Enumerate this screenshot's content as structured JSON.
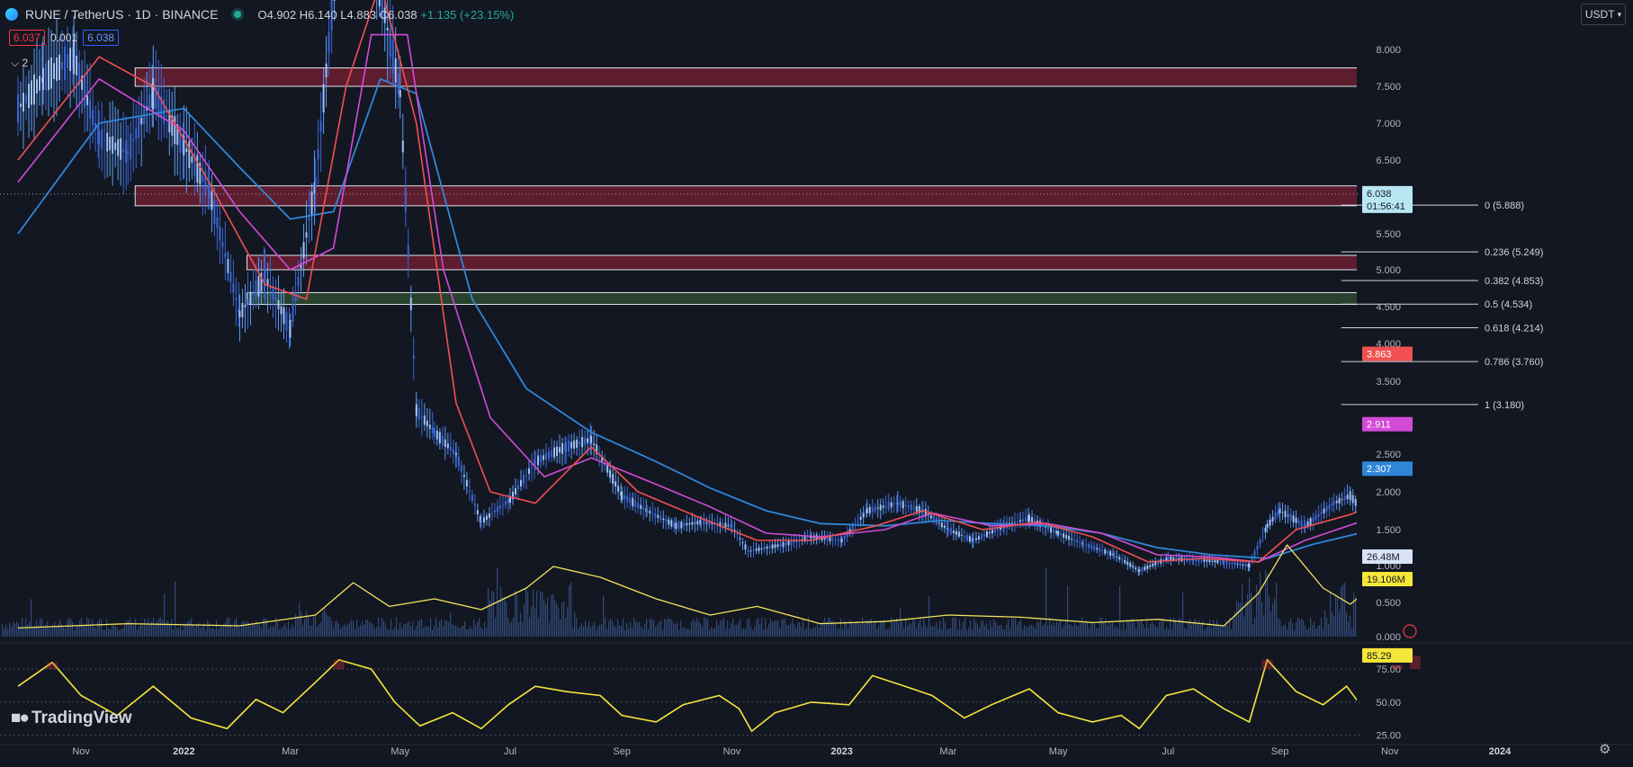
{
  "header": {
    "symbol": "RUNE / TetherUS · 1D · BINANCE",
    "open": "O4.902",
    "high": "H6.140",
    "low": "L4.883",
    "close": "C6.038",
    "change": "+1.135 (+23.15%)",
    "sell_price": "6.037",
    "spread": "0.001",
    "buy_price": "6.038",
    "indicator_toggle": "2",
    "currency": "USDT"
  },
  "watermark": "TradingView",
  "colors": {
    "background": "#131722",
    "candle_up": "#5b9cf6",
    "candle_down": "#3a66d6",
    "ema_red": "#f05050",
    "ema_magenta": "#d24bd6",
    "ema_blue": "#2f86d8",
    "volume_ma": "#f2e45b",
    "rsi": "#f5e63a",
    "zone_red": "#6b1f30",
    "zone_green": "#2d4a2f"
  },
  "chart_data": {
    "type": "line",
    "series_description_source": "price candles reconstructed from chart",
    "x_tick_labels": [
      "Nov",
      "2022",
      "Mar",
      "May",
      "Jul",
      "Sep",
      "Nov",
      "2023",
      "Mar",
      "May",
      "Jul",
      "Sep",
      "Nov",
      "2024"
    ],
    "y_axis": {
      "ticks": [
        "8.000",
        "7.500",
        "7.000",
        "6.500",
        "5.500",
        "5.000",
        "4.500",
        "4.000",
        "3.500",
        "2.500",
        "2.000",
        "1.500",
        "1.000",
        "0.500",
        "0.000"
      ],
      "log_scale": true
    },
    "price_labels": {
      "last_price": "6.038",
      "countdown": "01:56:41",
      "ema_red": "3.863",
      "ema_magenta": "2.911",
      "ema_blue": "2.307",
      "volume": "26.48M",
      "volume_ma": "19.106M"
    },
    "fibonacci": [
      {
        "label": "0 (5.888)",
        "value": 5.888
      },
      {
        "label": "0.236 (5.249)",
        "value": 5.249
      },
      {
        "label": "0.382 (4.853)",
        "value": 4.853
      },
      {
        "label": "0.5 (4.534)",
        "value": 4.534
      },
      {
        "label": "0.618 (4.214)",
        "value": 4.214
      },
      {
        "label": "0.786 (3.760)",
        "value": 3.76
      },
      {
        "label": "1 (3.180)",
        "value": 3.18
      }
    ],
    "zones": [
      {
        "type": "resistance",
        "from": 7.5,
        "to": 7.75,
        "start": "2021-12",
        "end": "2023-12"
      },
      {
        "type": "resistance",
        "from": 5.88,
        "to": 6.15,
        "start": "2021-12",
        "end": "2023-12"
      },
      {
        "type": "resistance",
        "from": 5.0,
        "to": 5.2,
        "start": "2022-02",
        "end": "2023-12"
      },
      {
        "type": "support",
        "from": 4.53,
        "to": 4.69,
        "start": "2022-02",
        "end": "2023-12"
      }
    ],
    "price_path": [
      [
        "2021-10-01",
        7.2
      ],
      [
        "2021-10-15",
        7.6
      ],
      [
        "2021-11-01",
        7.9
      ],
      [
        "2021-11-15",
        6.8
      ],
      [
        "2021-12-01",
        6.6
      ],
      [
        "2021-12-15",
        7.4
      ],
      [
        "2022-01-01",
        6.7
      ],
      [
        "2022-01-15",
        6.1
      ],
      [
        "2022-02-01",
        4.4
      ],
      [
        "2022-02-15",
        4.9
      ],
      [
        "2022-03-01",
        4.2
      ],
      [
        "2022-03-15",
        6.2
      ],
      [
        "2022-04-01",
        10.5
      ],
      [
        "2022-04-15",
        9.4
      ],
      [
        "2022-05-01",
        7.4
      ],
      [
        "2022-05-10",
        3.1
      ],
      [
        "2022-05-20",
        2.8
      ],
      [
        "2022-06-01",
        2.5
      ],
      [
        "2022-06-15",
        1.6
      ],
      [
        "2022-07-01",
        1.9
      ],
      [
        "2022-07-15",
        2.4
      ],
      [
        "2022-08-01",
        2.6
      ],
      [
        "2022-08-15",
        2.7
      ],
      [
        "2022-09-01",
        1.95
      ],
      [
        "2022-09-15",
        1.75
      ],
      [
        "2022-10-01",
        1.55
      ],
      [
        "2022-10-15",
        1.6
      ],
      [
        "2022-11-01",
        1.55
      ],
      [
        "2022-11-10",
        1.2
      ],
      [
        "2022-12-01",
        1.3
      ],
      [
        "2022-12-15",
        1.4
      ],
      [
        "2023-01-01",
        1.35
      ],
      [
        "2023-01-15",
        1.75
      ],
      [
        "2023-02-01",
        1.85
      ],
      [
        "2023-02-15",
        1.75
      ],
      [
        "2023-03-01",
        1.5
      ],
      [
        "2023-03-15",
        1.35
      ],
      [
        "2023-04-01",
        1.55
      ],
      [
        "2023-04-15",
        1.65
      ],
      [
        "2023-05-01",
        1.45
      ],
      [
        "2023-05-15",
        1.3
      ],
      [
        "2023-06-01",
        1.15
      ],
      [
        "2023-06-15",
        0.93
      ],
      [
        "2023-07-01",
        1.1
      ],
      [
        "2023-07-15",
        1.08
      ],
      [
        "2023-08-01",
        1.05
      ],
      [
        "2023-08-15",
        1.0
      ],
      [
        "2023-08-25",
        1.55
      ],
      [
        "2023-09-01",
        1.75
      ],
      [
        "2023-09-15",
        1.55
      ],
      [
        "2023-10-01",
        1.85
      ],
      [
        "2023-10-10",
        1.95
      ],
      [
        "2023-10-20",
        1.65
      ],
      [
        "2023-10-25",
        2.1
      ],
      [
        "2023-11-01",
        2.9
      ],
      [
        "2023-11-08",
        3.8
      ],
      [
        "2023-11-12",
        4.9
      ],
      [
        "2023-11-15",
        6.038
      ]
    ],
    "ema_red": [
      [
        "2021-10-01",
        6.5
      ],
      [
        "2021-11-15",
        7.9
      ],
      [
        "2021-12-15",
        7.5
      ],
      [
        "2022-01-15",
        6.2
      ],
      [
        "2022-02-15",
        4.8
      ],
      [
        "2022-03-10",
        4.6
      ],
      [
        "2022-04-01",
        7.5
      ],
      [
        "2022-04-20",
        8.9
      ],
      [
        "2022-05-10",
        7.0
      ],
      [
        "2022-06-01",
        3.2
      ],
      [
        "2022-06-20",
        2.0
      ],
      [
        "2022-07-15",
        1.85
      ],
      [
        "2022-08-15",
        2.6
      ],
      [
        "2022-09-10",
        2.0
      ],
      [
        "2022-10-15",
        1.65
      ],
      [
        "2022-11-15",
        1.35
      ],
      [
        "2022-12-15",
        1.35
      ],
      [
        "2023-01-20",
        1.55
      ],
      [
        "2023-02-15",
        1.75
      ],
      [
        "2023-03-20",
        1.5
      ],
      [
        "2023-04-20",
        1.6
      ],
      [
        "2023-05-20",
        1.4
      ],
      [
        "2023-06-20",
        1.05
      ],
      [
        "2023-07-20",
        1.1
      ],
      [
        "2023-08-20",
        1.05
      ],
      [
        "2023-09-10",
        1.5
      ],
      [
        "2023-10-10",
        1.7
      ],
      [
        "2023-10-25",
        1.85
      ],
      [
        "2023-11-05",
        2.6
      ],
      [
        "2023-11-15",
        3.863
      ]
    ],
    "ema_magenta": [
      [
        "2021-10-01",
        6.2
      ],
      [
        "2021-11-15",
        7.6
      ],
      [
        "2022-01-01",
        6.9
      ],
      [
        "2022-02-01",
        5.8
      ],
      [
        "2022-03-01",
        5.0
      ],
      [
        "2022-03-25",
        5.3
      ],
      [
        "2022-04-15",
        8.2
      ],
      [
        "2022-05-05",
        8.2
      ],
      [
        "2022-05-25",
        5.0
      ],
      [
        "2022-06-20",
        3.0
      ],
      [
        "2022-07-20",
        2.2
      ],
      [
        "2022-08-15",
        2.45
      ],
      [
        "2022-09-20",
        2.1
      ],
      [
        "2022-10-20",
        1.8
      ],
      [
        "2022-11-20",
        1.45
      ],
      [
        "2022-12-20",
        1.4
      ],
      [
        "2023-01-25",
        1.5
      ],
      [
        "2023-02-20",
        1.72
      ],
      [
        "2023-03-25",
        1.55
      ],
      [
        "2023-04-25",
        1.58
      ],
      [
        "2023-05-25",
        1.45
      ],
      [
        "2023-06-25",
        1.15
      ],
      [
        "2023-07-25",
        1.12
      ],
      [
        "2023-08-20",
        1.05
      ],
      [
        "2023-09-15",
        1.35
      ],
      [
        "2023-10-15",
        1.6
      ],
      [
        "2023-10-30",
        1.75
      ],
      [
        "2023-11-08",
        2.2
      ],
      [
        "2023-11-15",
        2.911
      ]
    ],
    "ema_blue": [
      [
        "2021-10-01",
        5.5
      ],
      [
        "2021-11-15",
        7.0
      ],
      [
        "2022-01-01",
        7.2
      ],
      [
        "2022-02-01",
        6.4
      ],
      [
        "2022-03-01",
        5.7
      ],
      [
        "2022-03-25",
        5.8
      ],
      [
        "2022-04-20",
        7.6
      ],
      [
        "2022-05-10",
        7.4
      ],
      [
        "2022-06-10",
        4.6
      ],
      [
        "2022-07-10",
        3.4
      ],
      [
        "2022-08-15",
        2.8
      ],
      [
        "2022-09-20",
        2.4
      ],
      [
        "2022-10-20",
        2.05
      ],
      [
        "2022-11-20",
        1.75
      ],
      [
        "2022-12-20",
        1.58
      ],
      [
        "2023-01-25",
        1.55
      ],
      [
        "2023-02-25",
        1.62
      ],
      [
        "2023-03-25",
        1.58
      ],
      [
        "2023-04-25",
        1.55
      ],
      [
        "2023-05-25",
        1.45
      ],
      [
        "2023-06-25",
        1.25
      ],
      [
        "2023-07-25",
        1.15
      ],
      [
        "2023-08-25",
        1.1
      ],
      [
        "2023-09-20",
        1.3
      ],
      [
        "2023-10-20",
        1.48
      ],
      [
        "2023-11-01",
        1.65
      ],
      [
        "2023-11-15",
        2.307
      ]
    ],
    "volume_ma": [
      [
        "2021-10-01",
        0.08
      ],
      [
        "2021-12-01",
        0.12
      ],
      [
        "2022-02-01",
        0.1
      ],
      [
        "2022-03-15",
        0.2
      ],
      [
        "2022-04-05",
        0.5
      ],
      [
        "2022-04-25",
        0.28
      ],
      [
        "2022-05-20",
        0.35
      ],
      [
        "2022-06-15",
        0.25
      ],
      [
        "2022-07-10",
        0.45
      ],
      [
        "2022-07-25",
        0.65
      ],
      [
        "2022-08-20",
        0.55
      ],
      [
        "2022-09-20",
        0.35
      ],
      [
        "2022-10-20",
        0.2
      ],
      [
        "2022-11-15",
        0.28
      ],
      [
        "2022-12-20",
        0.12
      ],
      [
        "2023-01-25",
        0.14
      ],
      [
        "2023-03-01",
        0.2
      ],
      [
        "2023-04-10",
        0.18
      ],
      [
        "2023-05-20",
        0.13
      ],
      [
        "2023-06-25",
        0.16
      ],
      [
        "2023-08-01",
        0.1
      ],
      [
        "2023-08-20",
        0.4
      ],
      [
        "2023-09-05",
        0.85
      ],
      [
        "2023-09-25",
        0.45
      ],
      [
        "2023-10-10",
        0.3
      ],
      [
        "2023-10-25",
        0.5
      ],
      [
        "2023-11-05",
        0.6
      ],
      [
        "2023-11-15",
        0.8
      ]
    ],
    "rsi": {
      "levels": [
        "75.00",
        "50.00",
        "25.00"
      ],
      "last": "85.29",
      "points": [
        [
          "2021-10-01",
          62
        ],
        [
          "2021-10-20",
          80
        ],
        [
          "2021-11-05",
          55
        ],
        [
          "2021-11-25",
          40
        ],
        [
          "2021-12-15",
          62
        ],
        [
          "2022-01-05",
          38
        ],
        [
          "2022-01-25",
          30
        ],
        [
          "2022-02-10",
          52
        ],
        [
          "2022-02-25",
          42
        ],
        [
          "2022-03-15",
          65
        ],
        [
          "2022-03-28",
          82
        ],
        [
          "2022-04-15",
          75
        ],
        [
          "2022-04-28",
          50
        ],
        [
          "2022-05-12",
          32
        ],
        [
          "2022-05-30",
          42
        ],
        [
          "2022-06-15",
          30
        ],
        [
          "2022-06-30",
          48
        ],
        [
          "2022-07-15",
          62
        ],
        [
          "2022-08-01",
          58
        ],
        [
          "2022-08-20",
          55
        ],
        [
          "2022-09-01",
          40
        ],
        [
          "2022-09-20",
          35
        ],
        [
          "2022-10-05",
          48
        ],
        [
          "2022-10-25",
          55
        ],
        [
          "2022-11-05",
          45
        ],
        [
          "2022-11-12",
          28
        ],
        [
          "2022-11-25",
          42
        ],
        [
          "2022-12-15",
          50
        ],
        [
          "2023-01-05",
          48
        ],
        [
          "2023-01-18",
          70
        ],
        [
          "2023-02-05",
          62
        ],
        [
          "2023-02-20",
          55
        ],
        [
          "2023-03-10",
          38
        ],
        [
          "2023-03-25",
          48
        ],
        [
          "2023-04-15",
          60
        ],
        [
          "2023-05-01",
          42
        ],
        [
          "2023-05-20",
          35
        ],
        [
          "2023-06-05",
          40
        ],
        [
          "2023-06-15",
          30
        ],
        [
          "2023-06-30",
          55
        ],
        [
          "2023-07-15",
          60
        ],
        [
          "2023-08-01",
          45
        ],
        [
          "2023-08-15",
          35
        ],
        [
          "2023-08-25",
          82
        ],
        [
          "2023-09-10",
          58
        ],
        [
          "2023-09-25",
          48
        ],
        [
          "2023-10-08",
          62
        ],
        [
          "2023-10-20",
          40
        ],
        [
          "2023-10-28",
          72
        ],
        [
          "2023-11-05",
          78
        ],
        [
          "2023-11-15",
          85
        ]
      ]
    }
  }
}
